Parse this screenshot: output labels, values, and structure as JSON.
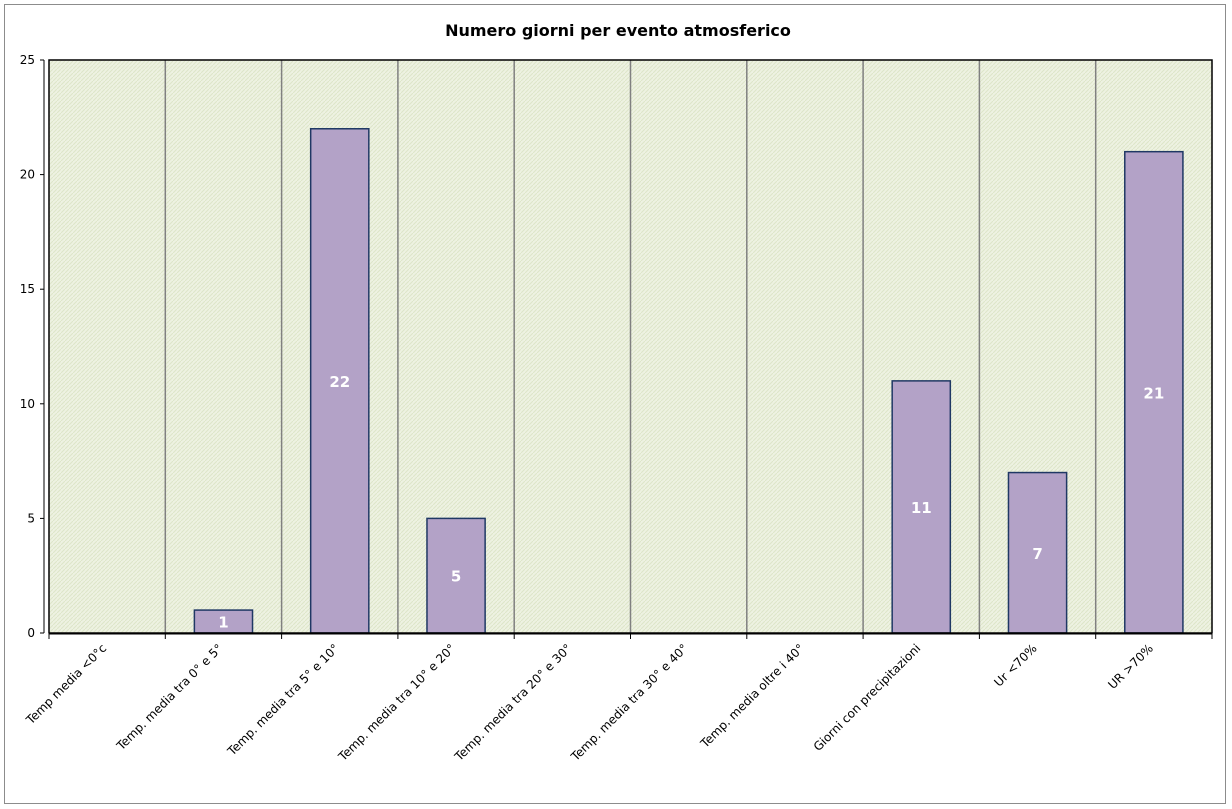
{
  "chart_data": {
    "type": "bar",
    "title": "Numero giorni  per evento atmosferico",
    "categories": [
      "Temp media <0°c",
      "Temp. media tra 0° e 5°",
      "Temp. media tra 5° e 10°",
      "Temp. media tra 10° e 20°",
      "Temp. media tra 20° e 30°",
      "Temp. media tra 30° e 40°",
      "Temp. media oltre i 40°",
      "Giorni con precipitazioni",
      "Ur  <70%",
      "UR >70%"
    ],
    "values": [
      0,
      1,
      22,
      5,
      0,
      0,
      0,
      11,
      7,
      21
    ],
    "data_labels": [
      "",
      "1",
      "22",
      "5",
      "",
      "",
      "",
      "11",
      "7",
      "21"
    ],
    "ylim": [
      0,
      25
    ],
    "yticks": [
      "0",
      "5",
      "10",
      "15",
      "20",
      "25"
    ],
    "xlabel": "",
    "ylabel": "",
    "grid": "vertical",
    "legend": "none",
    "colors": {
      "bar_fill": "#b3a2c7",
      "bar_stroke": "#1f3864",
      "plot_bg": "#eef2e2",
      "plot_hatch": "#dfe6cc",
      "gridline": "#808080",
      "label": "#ffffff"
    }
  }
}
